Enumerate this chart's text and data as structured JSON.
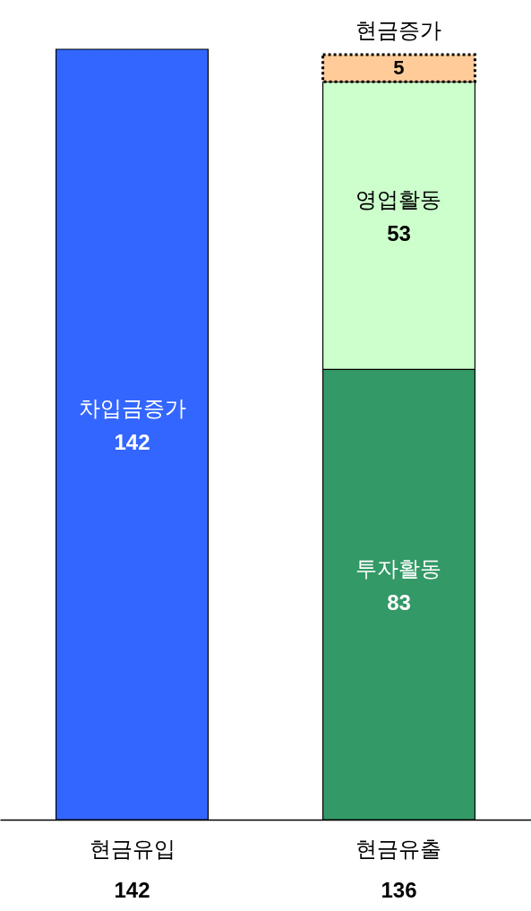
{
  "chart_data": {
    "type": "bar",
    "stacked": true,
    "data_labels": true,
    "categories": [
      "현금유입\n142",
      "현금유출\n136"
    ],
    "series": [
      {
        "name": "차입금증가",
        "color": "#3366ff",
        "values": [
          142,
          null
        ]
      },
      {
        "name": "투자활동",
        "color": "#339966",
        "values": [
          null,
          83
        ]
      },
      {
        "name": "영업활동",
        "color": "#ccffcc",
        "values": [
          null,
          53
        ]
      },
      {
        "name": "현금증가",
        "color": "#ffcc99",
        "values": [
          null,
          5
        ],
        "line_style": "dotted"
      }
    ]
  }
}
